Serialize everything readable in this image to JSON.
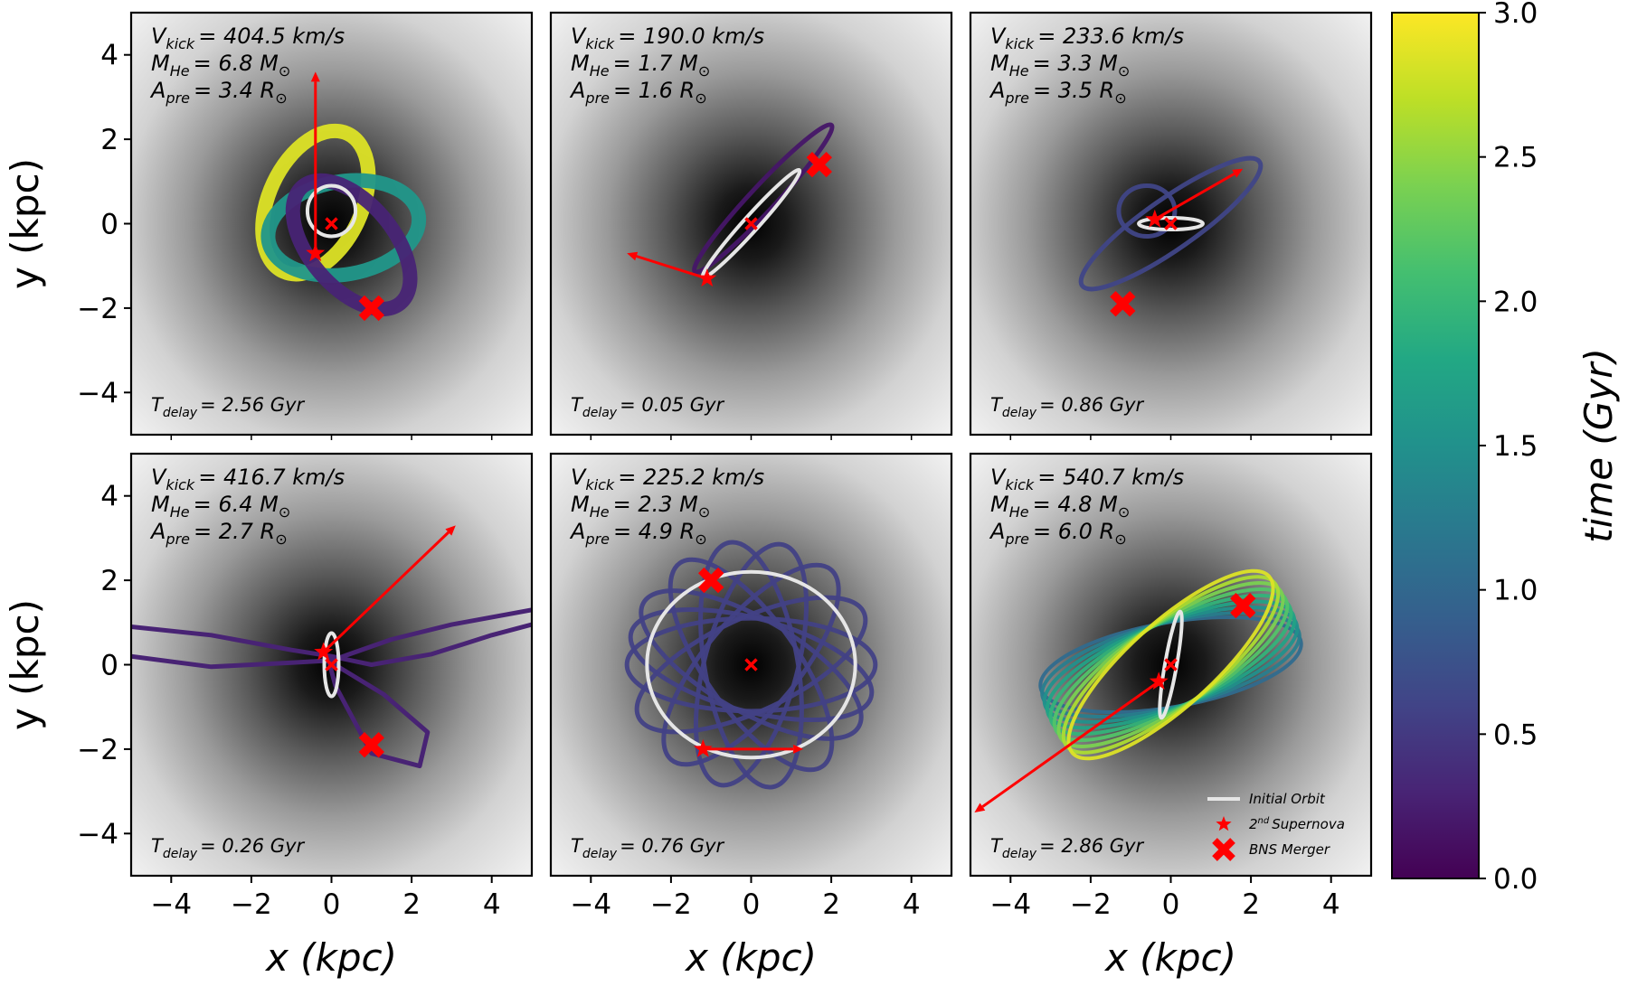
{
  "chart_data": {
    "type": "line",
    "layout": "2x3 grid of orbit panels",
    "xlabel": "x (kpc)",
    "ylabel": "y (kpc)",
    "xlim": [
      -5,
      5
    ],
    "ylim": [
      -5,
      5
    ],
    "ticks": [
      -4,
      -2,
      0,
      2,
      4
    ],
    "tick_labels": [
      "−4",
      "−2",
      "0",
      "2",
      "4"
    ],
    "background": "grayscale galactic potential, darkest at center",
    "colorbar": {
      "label": "time (Gyr)",
      "range": [
        0,
        3
      ],
      "ticks": [
        0.0,
        0.5,
        1.0,
        1.5,
        2.0,
        2.5,
        3.0
      ],
      "tick_labels": [
        "0.0",
        "0.5",
        "1.0",
        "1.5",
        "2.0",
        "2.5",
        "3.0"
      ],
      "colormap": "viridis",
      "stops": [
        "#440154",
        "#482475",
        "#414487",
        "#355f8d",
        "#2a788e",
        "#21918c",
        "#22a884",
        "#44bf70",
        "#7ad151",
        "#bddf26",
        "#fde725"
      ]
    },
    "legend": {
      "placement": "lower right of last panel",
      "entries": [
        {
          "label": "Initial Orbit",
          "marker": "line",
          "color": "#e6e6e6"
        },
        {
          "label": "Supernova",
          "marker": "star",
          "color": "#ff0000"
        },
        {
          "label": "BNS Merger",
          "marker": "X",
          "color": "#ff0000"
        }
      ]
    },
    "panels": [
      {
        "vkick_label": "V",
        "vkick_sub": "kick",
        "vkick_value": "= 404.5 km/s",
        "mhe_label": "M",
        "mhe_sub": "He",
        "mhe_value": "= 6.8 M",
        "apre_label": "A",
        "apre_sub": "pre",
        "apre_value": "= 3.4 R",
        "tdelay_label": "T",
        "tdelay_sub": "delay",
        "tdelay_value": "= 2.56 Gyr",
        "tdelay": 2.56,
        "initial_orbit": {
          "cx": 0.0,
          "cy": 0.3,
          "rx": 0.6,
          "ry": 0.6,
          "angle": 0
        },
        "trajectory": [
          {
            "cx": -0.4,
            "cy": 0.5,
            "rx": 1.9,
            "ry": 1.1,
            "angle": 65
          },
          {
            "cx": 0.3,
            "cy": -0.1,
            "rx": 1.9,
            "ry": 1.1,
            "angle": 10
          },
          {
            "cx": 0.5,
            "cy": -0.5,
            "rx": 1.9,
            "ry": 1.0,
            "angle": -50
          }
        ],
        "supernova": [
          -0.4,
          -0.7
        ],
        "center": [
          0.0,
          0.0
        ],
        "merger": [
          1.0,
          -2.0
        ],
        "kick": {
          "from": [
            -0.4,
            -0.7
          ],
          "to": [
            -0.4,
            3.6
          ]
        }
      },
      {
        "vkick_label": "V",
        "vkick_sub": "kick",
        "vkick_value": "= 190.0 km/s",
        "mhe_label": "M",
        "mhe_sub": "He",
        "mhe_value": "= 1.7 M",
        "apre_label": "A",
        "apre_sub": "pre",
        "apre_value": "= 1.6 R",
        "tdelay_label": "T",
        "tdelay_sub": "delay",
        "tdelay_value": "= 0.05 Gyr",
        "tdelay": 0.05,
        "initial_orbit": {
          "cx": 0.0,
          "cy": 0.0,
          "rx": 1.8,
          "ry": 0.18,
          "angle": 48
        },
        "trajectory": [
          {
            "cx": 0.3,
            "cy": 0.6,
            "rx": 2.5,
            "ry": 0.3,
            "angle": 47
          }
        ],
        "supernova": [
          -1.1,
          -1.3
        ],
        "center": [
          0.0,
          0.0
        ],
        "merger": [
          1.7,
          1.4
        ],
        "kick": {
          "from": [
            -1.1,
            -1.3
          ],
          "to": [
            -3.1,
            -0.7
          ]
        }
      },
      {
        "vkick_label": "V",
        "vkick_sub": "kick",
        "vkick_value": "= 233.6 km/s",
        "mhe_label": "M",
        "mhe_sub": "He",
        "mhe_value": "= 3.3 M",
        "apre_label": "A",
        "apre_sub": "pre",
        "apre_value": "= 3.5 R",
        "tdelay_label": "T",
        "tdelay_sub": "delay",
        "tdelay_value": "= 0.86 Gyr",
        "tdelay": 0.86,
        "initial_orbit": {
          "cx": 0.0,
          "cy": 0.0,
          "rx": 0.8,
          "ry": 0.14,
          "angle": 0
        },
        "trajectory": [
          {
            "cx": 0.0,
            "cy": 0.0,
            "rx": 2.7,
            "ry": 0.6,
            "angle": 35
          },
          {
            "cx": -0.6,
            "cy": 0.3,
            "rx": 0.7,
            "ry": 0.6,
            "angle": 0
          }
        ],
        "supernova": [
          -0.4,
          0.1
        ],
        "center": [
          0.0,
          0.0
        ],
        "merger": [
          -1.2,
          -1.9
        ],
        "kick": {
          "from": [
            -0.4,
            0.1
          ],
          "to": [
            1.8,
            1.3
          ]
        }
      },
      {
        "vkick_label": "V",
        "vkick_sub": "kick",
        "vkick_value": "= 416.7 km/s",
        "mhe_label": "M",
        "mhe_sub": "He",
        "mhe_value": "= 6.4 M",
        "apre_label": "A",
        "apre_sub": "pre",
        "apre_value": "= 2.7 R",
        "tdelay_label": "T",
        "tdelay_sub": "delay",
        "tdelay_value": "= 0.26 Gyr",
        "tdelay": 0.26,
        "initial_orbit": {
          "cx": 0.0,
          "cy": 0.0,
          "rx": 0.18,
          "ry": 0.75,
          "angle": 0
        },
        "trajectory_paths": [
          [
            [
              -5,
              0.9
            ],
            [
              -3,
              0.7
            ],
            [
              -1,
              0.35
            ],
            [
              0,
              0.2
            ],
            [
              1,
              0.0
            ],
            [
              2.5,
              0.25
            ],
            [
              4,
              0.7
            ],
            [
              5,
              0.95
            ]
          ],
          [
            [
              -5,
              0.2
            ],
            [
              -3,
              -0.05
            ],
            [
              -1,
              0.05
            ],
            [
              0,
              0.1
            ],
            [
              1.5,
              0.6
            ],
            [
              3,
              0.95
            ],
            [
              5,
              1.3
            ]
          ],
          [
            [
              0,
              0.05
            ],
            [
              1.3,
              -0.7
            ],
            [
              2.4,
              -1.6
            ],
            [
              2.2,
              -2.4
            ],
            [
              1.0,
              -2.1
            ],
            [
              0.1,
              -0.5
            ],
            [
              -0.1,
              0.2
            ]
          ]
        ],
        "supernova": [
          -0.2,
          0.3
        ],
        "center": [
          0.0,
          0.0
        ],
        "merger": [
          1.0,
          -1.9
        ],
        "kick": {
          "from": [
            -0.2,
            0.3
          ],
          "to": [
            3.1,
            3.3
          ]
        }
      },
      {
        "vkick_label": "V",
        "vkick_sub": "kick",
        "vkick_value": "= 225.2 km/s",
        "mhe_label": "M",
        "mhe_sub": "He",
        "mhe_value": "= 2.3 M",
        "apre_label": "A",
        "apre_sub": "pre",
        "apre_value": "= 4.9 R",
        "tdelay_label": "T",
        "tdelay_sub": "delay",
        "tdelay_value": "= 0.76 Gyr",
        "tdelay": 0.76,
        "initial_orbit": {
          "cx": 0.0,
          "cy": 0.0,
          "rx": 2.6,
          "ry": 2.2,
          "angle": 0
        },
        "trajectory_rosette": {
          "cx": 0.0,
          "cy": 0.0,
          "rx": 3.1,
          "ry": 1.1,
          "angles": [
            0,
            25,
            50,
            75,
            100,
            125,
            150,
            165
          ]
        },
        "supernova": [
          -1.2,
          -2.0
        ],
        "center": [
          0.0,
          0.0
        ],
        "merger": [
          -1.0,
          2.0
        ],
        "kick": {
          "from": [
            -1.2,
            -2.0
          ],
          "to": [
            1.3,
            -2.0
          ]
        }
      },
      {
        "vkick_label": "V",
        "vkick_sub": "kick",
        "vkick_value": "= 540.7 km/s",
        "mhe_label": "M",
        "mhe_sub": "He",
        "mhe_value": "= 4.8 M",
        "apre_label": "A",
        "apre_sub": "pre",
        "apre_value": "= 6.0 R",
        "tdelay_label": "T",
        "tdelay_sub": "delay",
        "tdelay_value": "= 2.86 Gyr",
        "tdelay": 2.86,
        "initial_orbit": {
          "cx": 0.0,
          "cy": 0.0,
          "rx": 1.35,
          "ry": 0.14,
          "angle": 80
        },
        "trajectory_rosette": {
          "cx": 0.0,
          "cy": 0.0,
          "rx": 3.3,
          "ry": 1.0,
          "angles": [
            10,
            14,
            18,
            22,
            26,
            30,
            34,
            38,
            42
          ]
        },
        "supernova": [
          -0.3,
          -0.4
        ],
        "center": [
          0.0,
          0.0
        ],
        "merger": [
          1.8,
          1.4
        ],
        "kick": {
          "from": [
            -0.3,
            -0.4
          ],
          "to": [
            -4.9,
            -3.5
          ]
        }
      }
    ]
  }
}
